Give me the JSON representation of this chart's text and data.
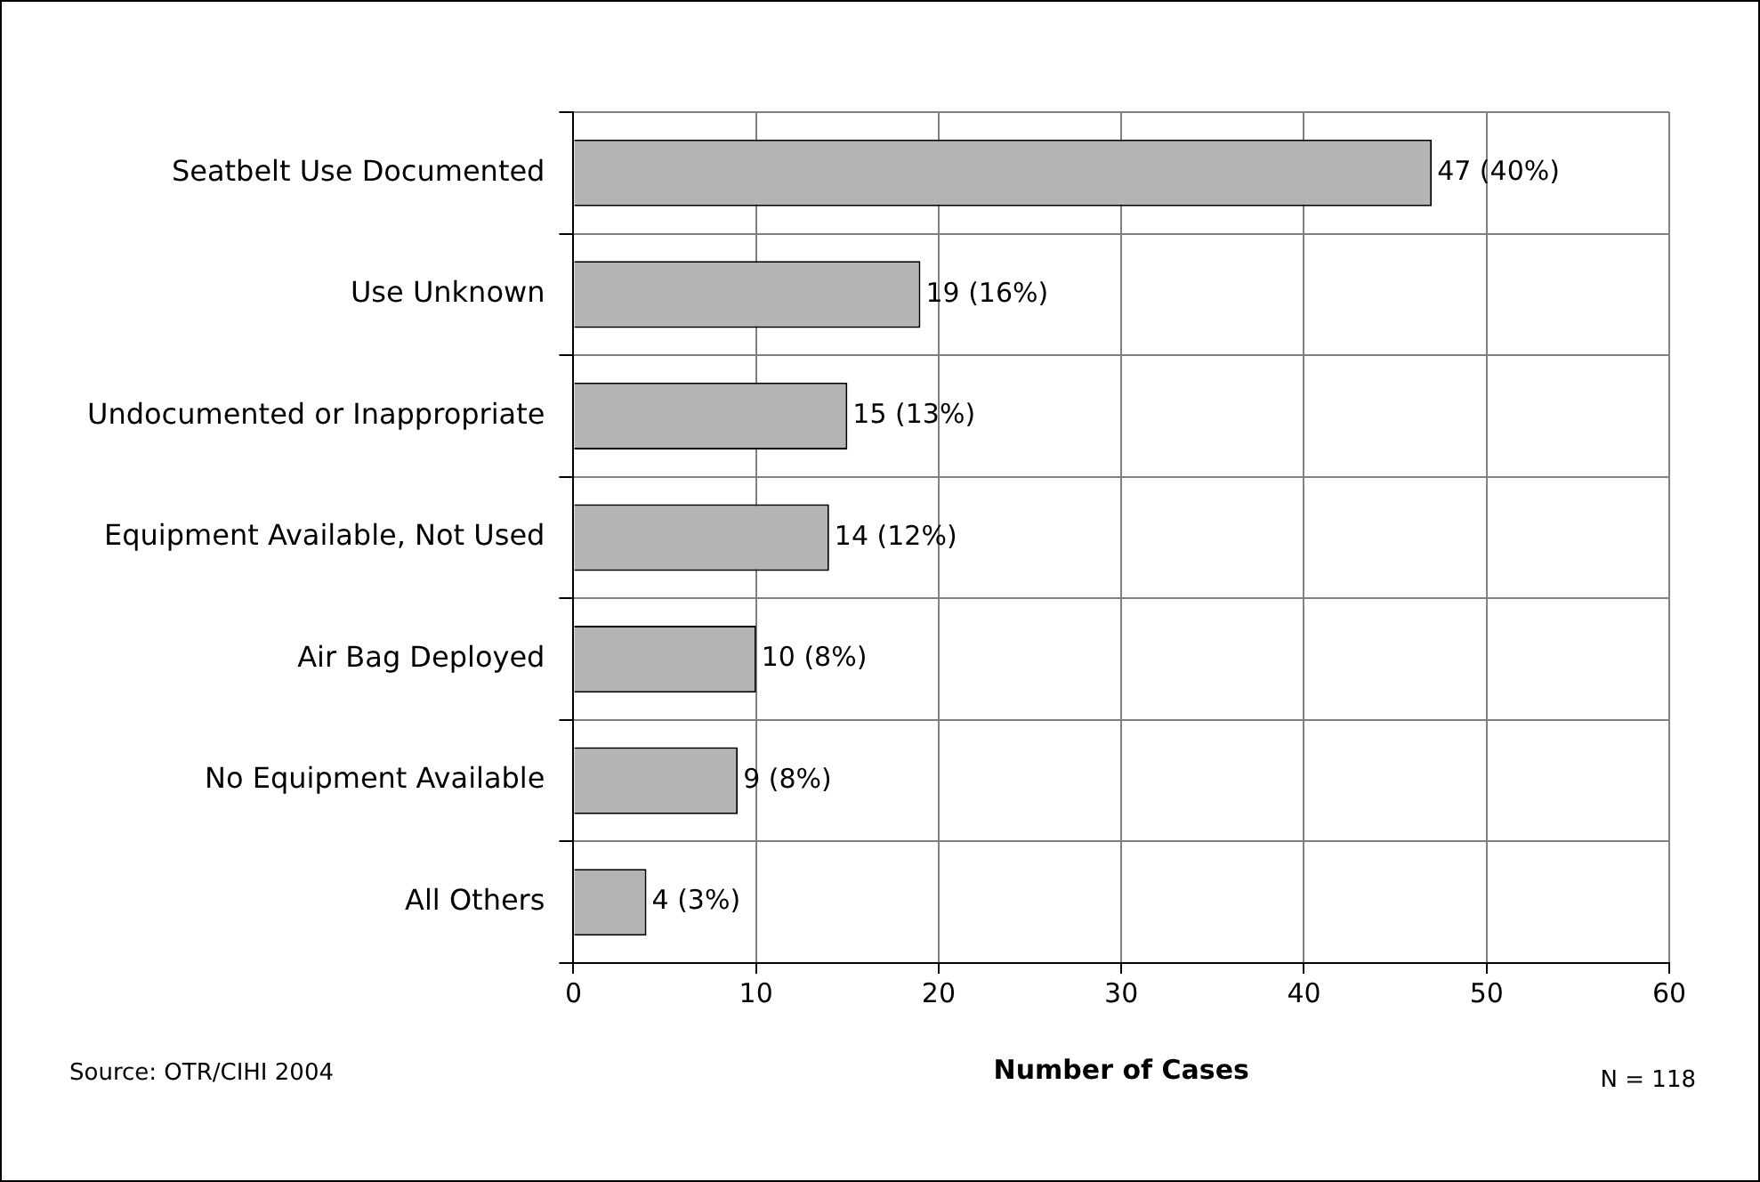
{
  "chart_data": {
    "type": "bar",
    "orientation": "horizontal",
    "xlabel": "Number of Cases",
    "categories": [
      "Seatbelt Use Documented",
      "Use Unknown",
      "Undocumented or Inappropriate",
      "Equipment Available, Not Used",
      "Air Bag Deployed",
      "No Equipment Available",
      "All Others"
    ],
    "values": [
      47,
      19,
      15,
      14,
      10,
      9,
      4
    ],
    "value_labels": [
      "47 (40%)",
      "19 (16%)",
      "15 (13%)",
      "14 (12%)",
      "10 (8%)",
      "9 (8%)",
      "4 (3%)"
    ],
    "color": "#b4b4b4",
    "xlim": [
      0,
      60
    ],
    "xticks": [
      0,
      10,
      20,
      30,
      40,
      50,
      60
    ],
    "grid": true,
    "legend": false,
    "annotations": [
      "Source: OTR/CIHI 2004",
      "N = 118"
    ]
  }
}
